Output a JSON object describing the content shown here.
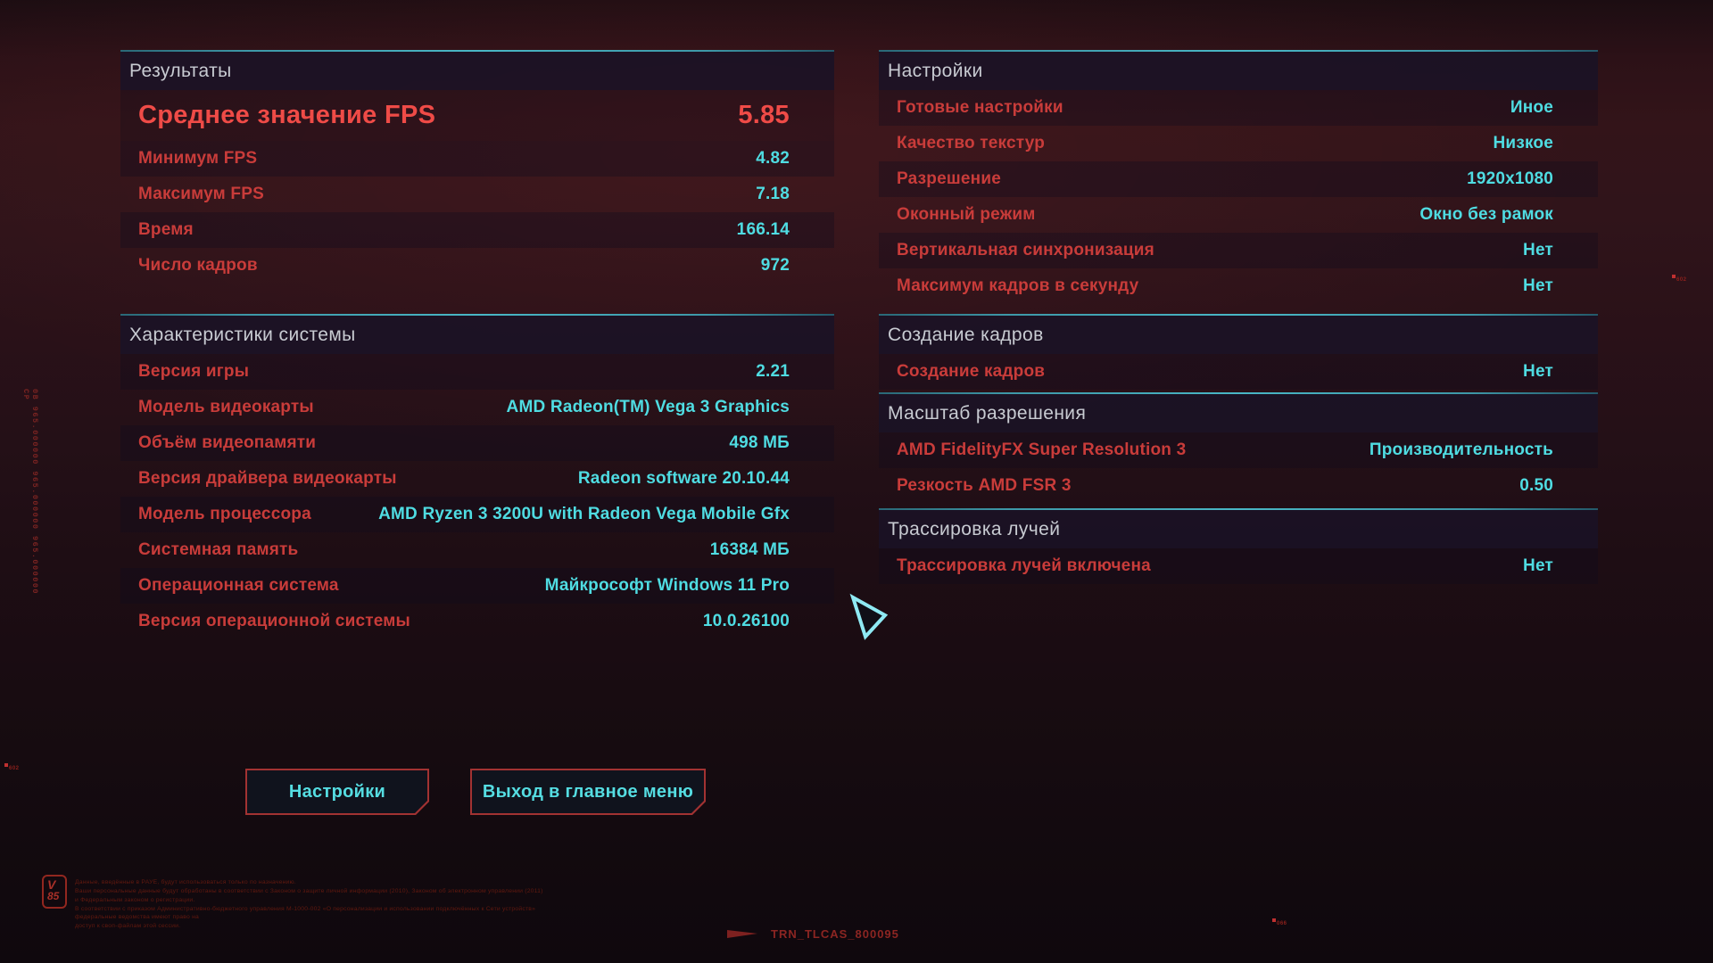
{
  "results_panel": {
    "header": "Результаты",
    "avg_row": {
      "label": "Среднее значение FPS",
      "value": "5.85"
    },
    "rows": [
      {
        "label": "Минимум FPS",
        "value": "4.82"
      },
      {
        "label": "Максимум FPS",
        "value": "7.18"
      },
      {
        "label": "Время",
        "value": "166.14"
      },
      {
        "label": "Число кадров",
        "value": "972"
      }
    ]
  },
  "system_panel": {
    "header": "Характеристики системы",
    "rows": [
      {
        "label": "Версия игры",
        "value": "2.21"
      },
      {
        "label": "Модель видеокарты",
        "value": "AMD Radeon(TM) Vega 3 Graphics"
      },
      {
        "label": "Объём видеопамяти",
        "value": "498 МБ"
      },
      {
        "label": "Версия драйвера видеокарты",
        "value": "Radeon software 20.10.44"
      },
      {
        "label": "Модель процессора",
        "value": "AMD Ryzen 3 3200U with Radeon Vega Mobile Gfx"
      },
      {
        "label": "Системная память",
        "value": "16384 МБ"
      },
      {
        "label": "Операционная система",
        "value": "Майкрософт Windows 11 Pro"
      },
      {
        "label": "Версия операционной системы",
        "value": "10.0.26100"
      }
    ]
  },
  "settings_panel": {
    "header": "Настройки",
    "rows": [
      {
        "label": "Готовые настройки",
        "value": "Иное"
      },
      {
        "label": "Качество текстур",
        "value": "Низкое"
      },
      {
        "label": "Разрешение",
        "value": "1920x1080"
      },
      {
        "label": "Оконный режим",
        "value": "Окно без рамок"
      },
      {
        "label": "Вертикальная синхронизация",
        "value": "Нет"
      },
      {
        "label": "Максимум кадров в секунду",
        "value": "Нет"
      }
    ]
  },
  "frame_generation_panel": {
    "header": "Создание кадров",
    "rows": [
      {
        "label": "Создание кадров",
        "value": "Нет"
      }
    ]
  },
  "resolution_scaling_panel": {
    "header": "Масштаб разрешения",
    "rows": [
      {
        "label": "AMD FidelityFX Super Resolution 3",
        "value": "Производительность"
      },
      {
        "label": "Резкость AMD FSR 3",
        "value": "0.50"
      }
    ]
  },
  "ray_tracing_panel": {
    "header": "Трассировка лучей",
    "rows": [
      {
        "label": "Трассировка лучей включена",
        "value": "Нет"
      }
    ]
  },
  "buttons": {
    "settings_label": "Настройки",
    "exit_label": "Выход в главное меню"
  },
  "footer": {
    "badge_line1": "V",
    "badge_line2": "85",
    "disclaimer_lines": [
      "Данные, введённые в РАУЕ, будут использоваться только по назначению.",
      "Ваши персональные данные будут обработаны в соответствии с Законом о защите личной информации (2010), Законом об электронном управлении (2011) и Федеральным законом о регистрации.",
      "В соответствии с приказом Административно-бюджетного управления М-1000-002 «О персонализации и использовании подключённых к Сети устройств» федеральные ведомства имеют право на",
      "доступ к своп-файлам этой сессии."
    ],
    "session_id": "TRN_TLCAS_800095"
  },
  "decor": {
    "vertical_text": "0B 965.000000 965.000000 965.000000 CP",
    "markers": [
      {
        "text": "602"
      },
      {
        "text": "602"
      },
      {
        "text": "066"
      }
    ]
  },
  "colors": {
    "accent_red": "#ef4b47",
    "label_red": "#c93c3a",
    "value_cyan": "#4fdce2",
    "teal_line": "#3e98a8",
    "header_text": "#c8cbd2",
    "button_border_red": "#a23232"
  }
}
